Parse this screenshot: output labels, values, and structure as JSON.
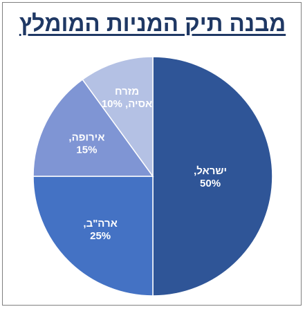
{
  "chart_data": {
    "type": "pie",
    "title": "מבנה תיק המניות המומלץ",
    "slices": [
      {
        "label_line1": "ישראל,",
        "label_line2": "50%",
        "value": 50,
        "color": "#2f5597"
      },
      {
        "label_line1": "ארה\"ב,",
        "label_line2": "25%",
        "value": 25,
        "color": "#4472c4"
      },
      {
        "label_line1": "אירופה,",
        "label_line2": "15%",
        "value": 15,
        "color": "#7f95d4"
      },
      {
        "label_line1": "מזרח",
        "label_line2": "אסיה, 10%",
        "value": 10,
        "color": "#b4c1e4"
      }
    ]
  }
}
